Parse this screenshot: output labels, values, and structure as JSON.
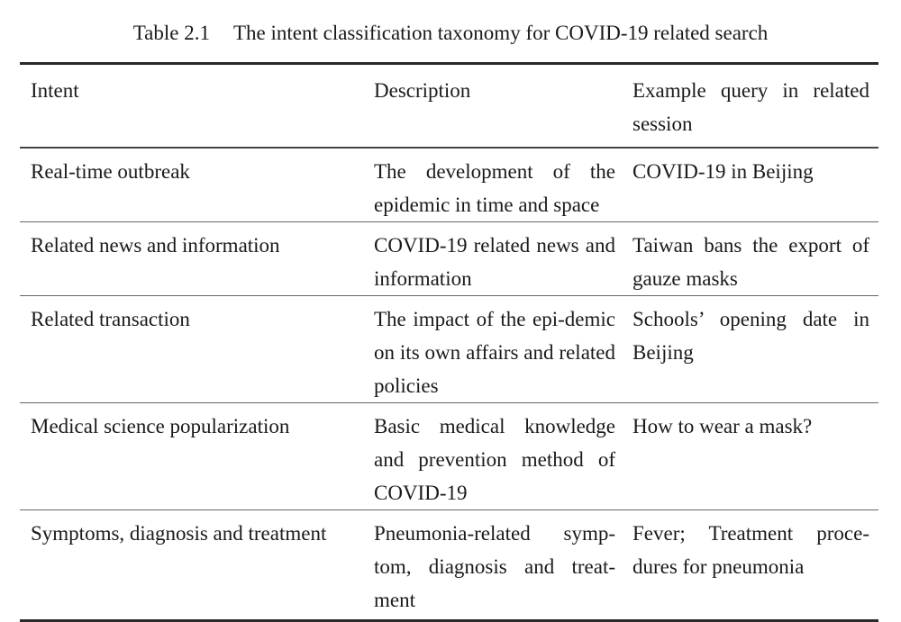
{
  "caption": {
    "number": "Table 2.1",
    "title": "The intent classification taxonomy for COVID-19 related search"
  },
  "table": {
    "headers": [
      "Intent",
      "Description",
      "Example query in related session"
    ],
    "rows": [
      {
        "intent": "Real-time outbreak",
        "description": "The development of the epidemic in time and space",
        "example": "COVID-19 in Beijing"
      },
      {
        "intent": "Related news and information",
        "description": "COVID-19 related news and information",
        "example": "Taiwan bans the export of gauze masks"
      },
      {
        "intent": "Related transaction",
        "description": "The impact of the epi-demic on its own affairs and related policies",
        "example": "Schools’ opening date in Beijing"
      },
      {
        "intent": "Medical science popularization",
        "description": "Basic medical knowledge and prevention method of COVID-19",
        "example": "How to wear a mask?"
      },
      {
        "intent": "Symptoms, diagnosis and treatment",
        "description": "Pneumonia-related symp-tom, diagnosis and treat-ment",
        "example": "Fever; Treatment proce-dures for pneumonia"
      }
    ]
  }
}
